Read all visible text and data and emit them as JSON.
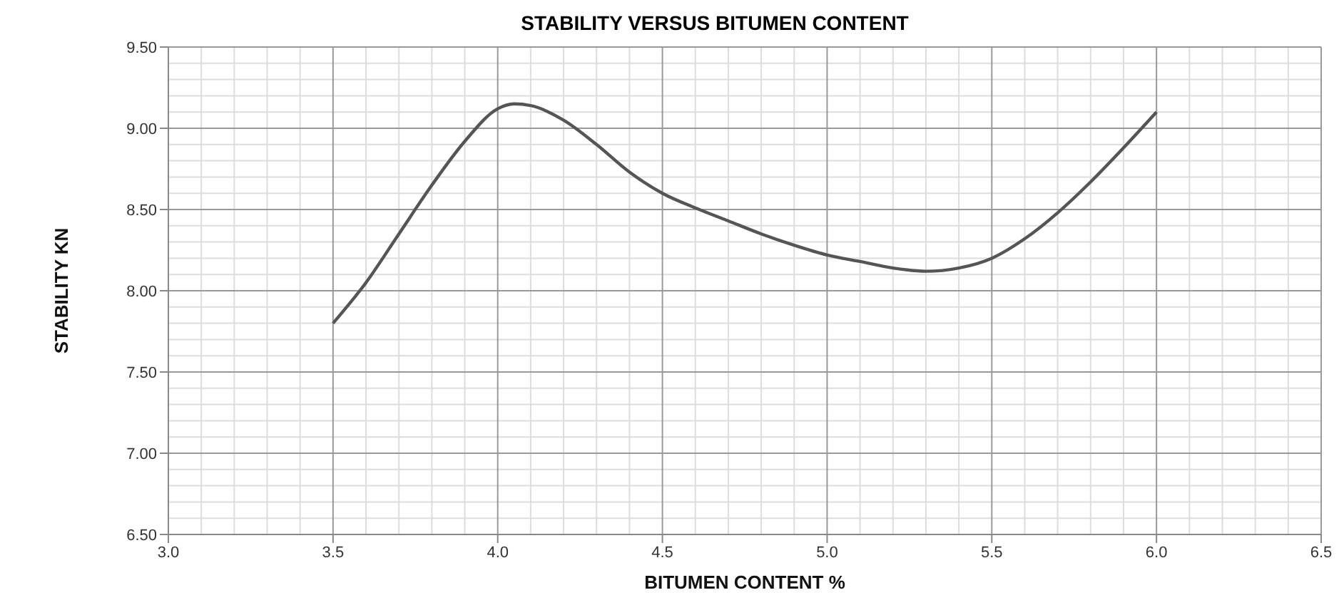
{
  "chart_data": {
    "type": "line",
    "title": "STABILITY VERSUS BITUMEN CONTENT",
    "xlabel": "BITUMEN CONTENT %",
    "ylabel": "STABILITY KN",
    "series": [
      {
        "color": "#555555",
        "x": [
          3.5,
          3.6,
          3.7,
          3.8,
          3.9,
          4.0,
          4.05,
          4.1,
          4.2,
          4.3,
          4.4,
          4.5,
          4.6,
          4.7,
          4.8,
          4.9,
          5.0,
          5.1,
          5.2,
          5.3,
          5.4,
          5.5,
          5.6,
          5.7,
          5.8,
          5.9,
          6.0
        ],
        "values": [
          7.8,
          8.05,
          8.35,
          8.65,
          8.92,
          9.12,
          9.15,
          9.14,
          9.05,
          8.9,
          8.73,
          8.6,
          8.51,
          8.43,
          8.35,
          8.28,
          8.22,
          8.18,
          8.14,
          8.12,
          8.14,
          8.2,
          8.32,
          8.48,
          8.67,
          8.88,
          9.1
        ]
      }
    ],
    "xlim": [
      3.0,
      6.5
    ],
    "xticks": [
      {
        "value": 3,
        "label": "3.0"
      },
      {
        "value": 3.5,
        "label": "3.5"
      },
      {
        "value": 4,
        "label": "4.0"
      },
      {
        "value": 4.5,
        "label": "4.5"
      },
      {
        "value": 5,
        "label": "5.0"
      },
      {
        "value": 5.5,
        "label": "5.5"
      },
      {
        "value": 6,
        "label": "6.0"
      },
      {
        "value": 6.5,
        "label": "6.5"
      }
    ],
    "ylim": [
      6.5,
      9.5
    ],
    "yticks": [
      {
        "value": 6.5,
        "label": "6.50"
      },
      {
        "value": 7,
        "label": "7.00"
      },
      {
        "value": 7.5,
        "label": "7.50"
      },
      {
        "value": 8,
        "label": "8.00"
      },
      {
        "value": 8.5,
        "label": "8.50"
      },
      {
        "value": 9,
        "label": "9.00"
      },
      {
        "value": 9.5,
        "label": "9.50"
      }
    ],
    "grid": true,
    "marker": "none",
    "line_style": "solid"
  }
}
